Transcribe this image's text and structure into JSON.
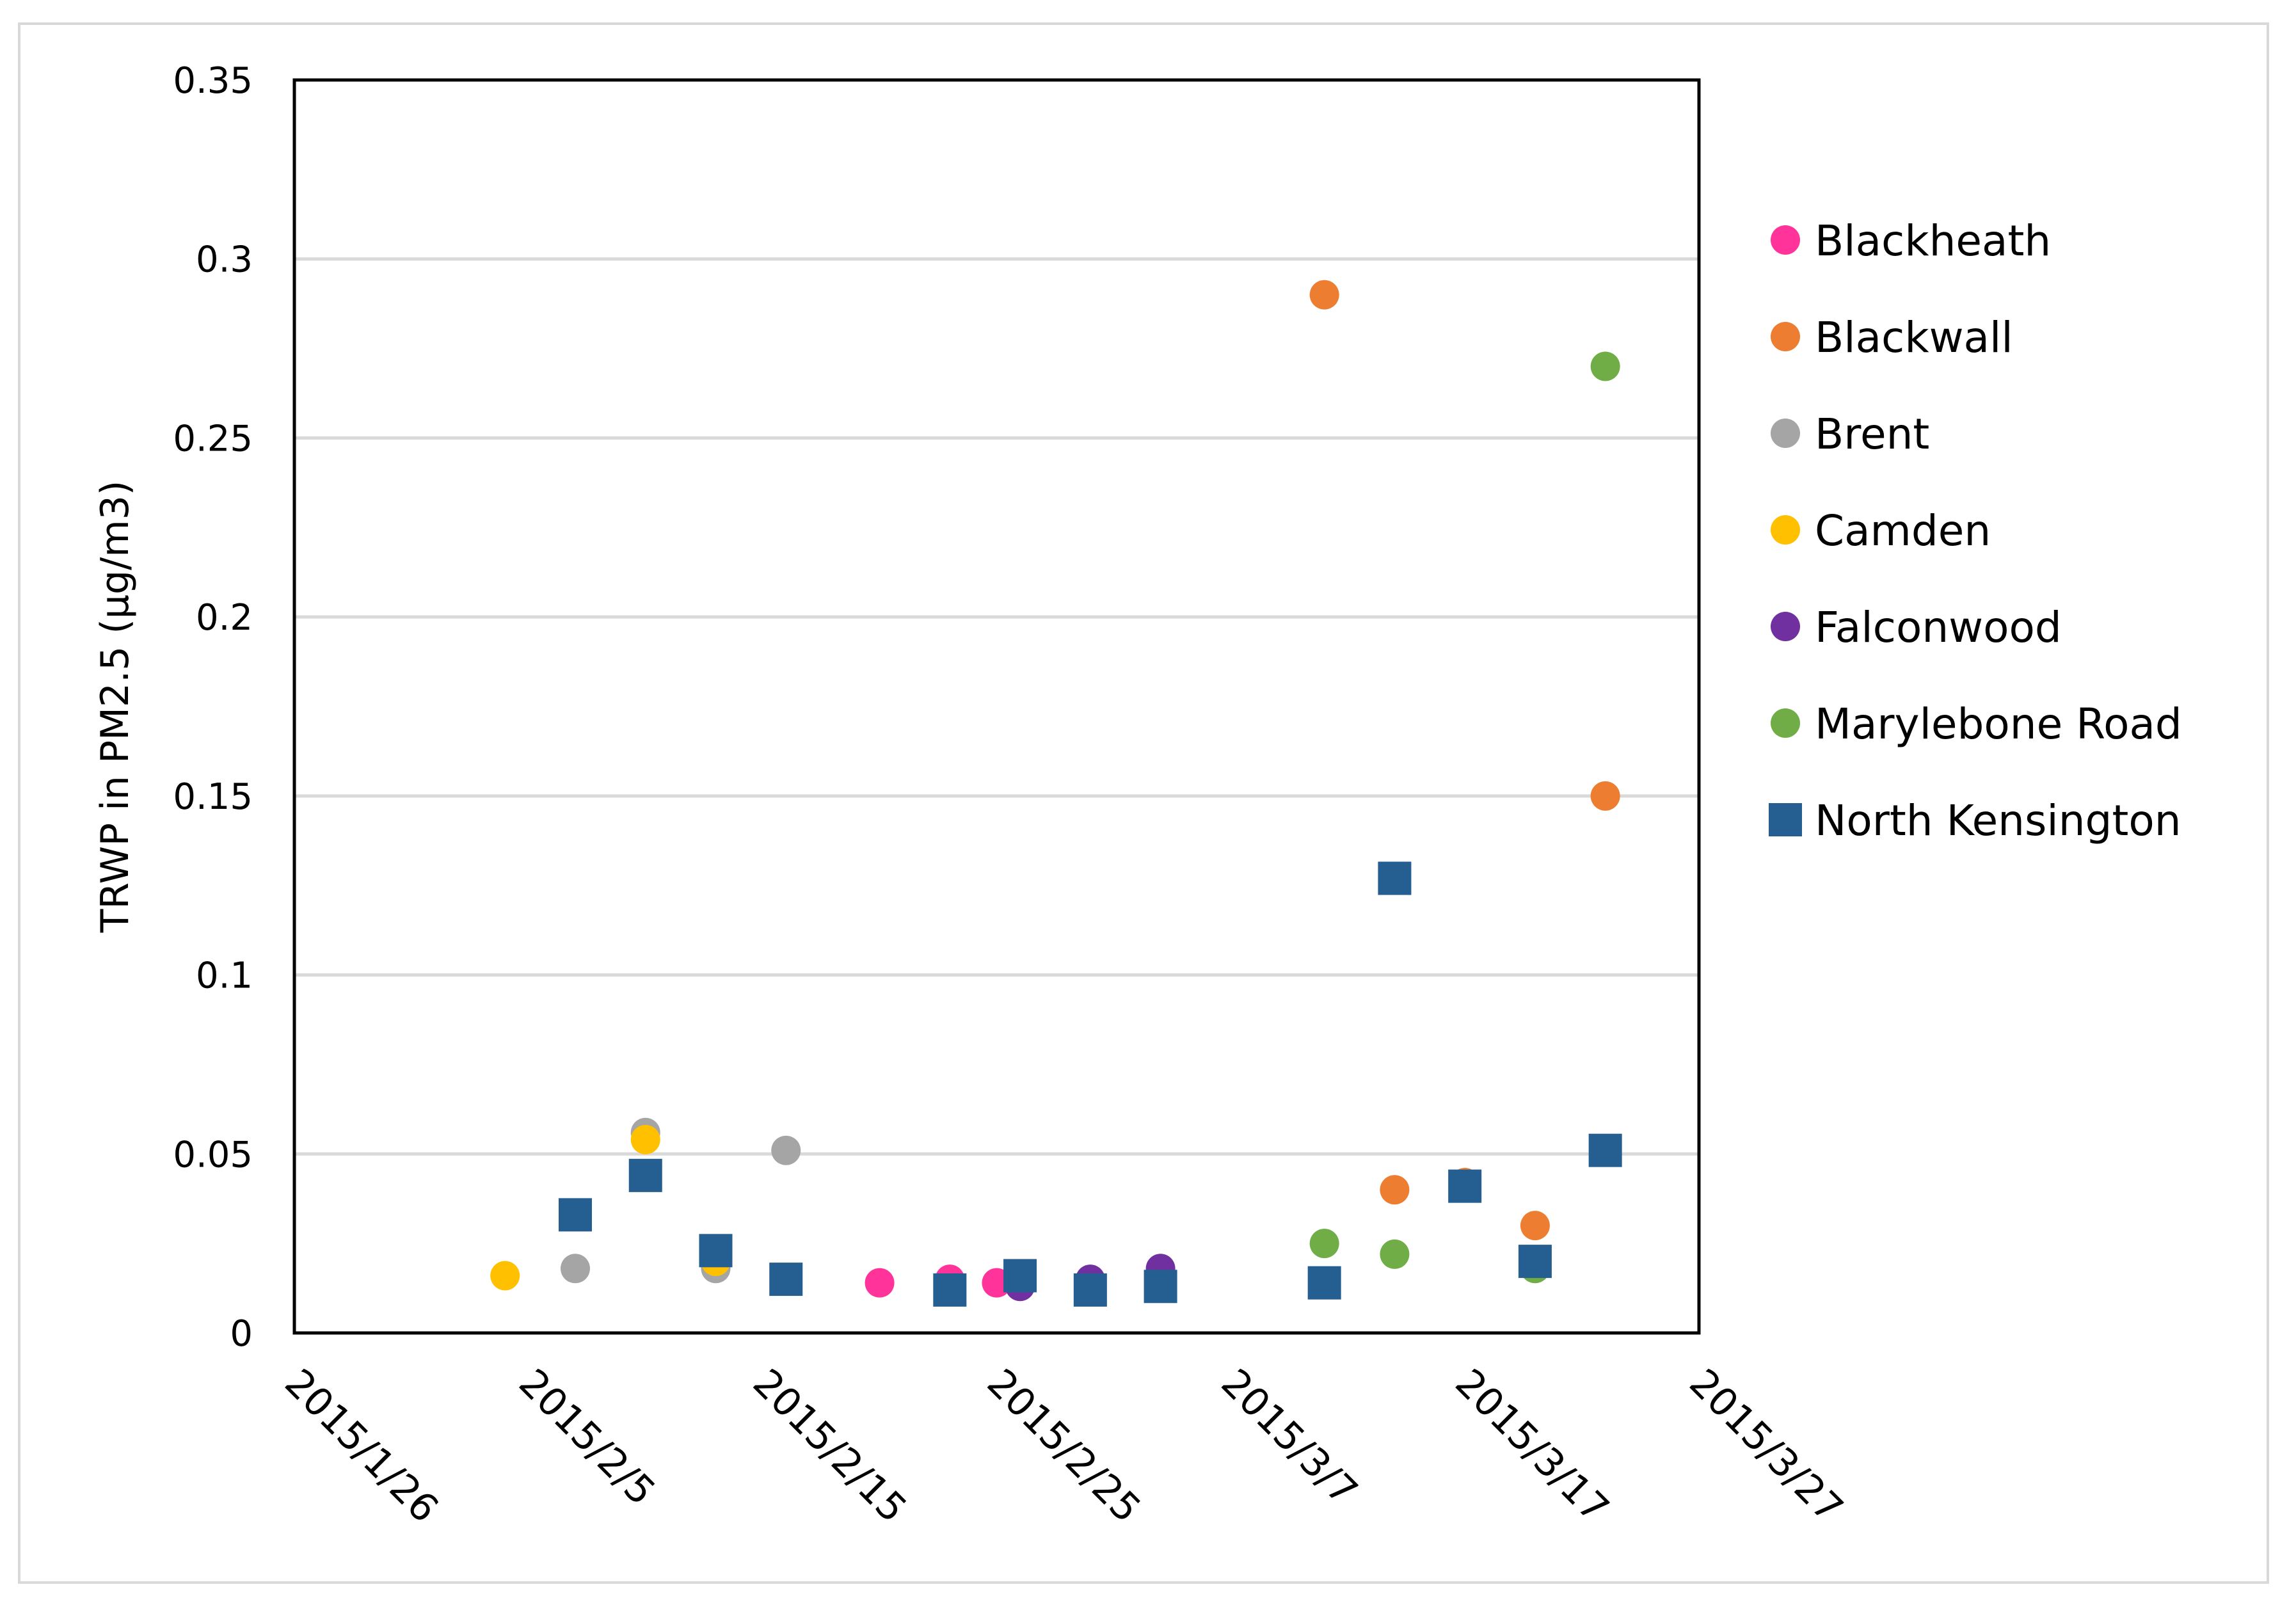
{
  "chart_data": {
    "type": "scatter",
    "title": "",
    "xlabel": "",
    "ylabel": "TRWP in PM2.5 (µg/m3)",
    "ylim": [
      0,
      0.35
    ],
    "yticks": [
      0,
      0.05,
      0.1,
      0.15,
      0.2,
      0.25,
      0.3,
      0.35
    ],
    "ytick_labels": [
      "0",
      "0.05",
      "0.1",
      "0.15",
      "0.2",
      "0.25",
      "0.3",
      "0.35"
    ],
    "xlim_days": [
      0,
      60
    ],
    "xtick_days": [
      0,
      10,
      20,
      30,
      40,
      50,
      60
    ],
    "xtick_labels": [
      "2015/1/26",
      "2015/2/5",
      "2015/2/15",
      "2015/2/25",
      "2015/3/7",
      "2015/3/17",
      "2015/3/27"
    ],
    "x_note": "x values are days since 2015/1/26",
    "grid": "horizontal",
    "legend_position": "right",
    "series": [
      {
        "name": "Blackheath",
        "color": "#FF3399",
        "marker": "circle",
        "points": [
          [
            25,
            0.014
          ],
          [
            28,
            0.015
          ],
          [
            30,
            0.014
          ]
        ]
      },
      {
        "name": "Blackwall",
        "color": "#ED7D31",
        "marker": "circle",
        "points": [
          [
            44,
            0.29
          ],
          [
            47,
            0.04
          ],
          [
            50,
            0.042
          ],
          [
            53,
            0.03
          ],
          [
            56,
            0.15
          ]
        ]
      },
      {
        "name": "Brent",
        "color": "#A5A5A5",
        "marker": "circle",
        "points": [
          [
            12,
            0.018
          ],
          [
            15,
            0.056
          ],
          [
            18,
            0.018
          ],
          [
            21,
            0.051
          ]
        ]
      },
      {
        "name": "Camden",
        "color": "#FFC000",
        "marker": "circle",
        "points": [
          [
            9,
            0.016
          ],
          [
            15,
            0.054
          ],
          [
            18,
            0.02
          ]
        ]
      },
      {
        "name": "Falconwood",
        "color": "#7030A0",
        "marker": "circle",
        "points": [
          [
            31,
            0.013
          ],
          [
            34,
            0.015
          ],
          [
            37,
            0.018
          ]
        ]
      },
      {
        "name": "Marylebone Road",
        "color": "#70AD47",
        "marker": "circle",
        "points": [
          [
            44,
            0.025
          ],
          [
            47,
            0.022
          ],
          [
            53,
            0.018
          ],
          [
            56,
            0.27
          ]
        ]
      },
      {
        "name": "North Kensington",
        "color": "#255E91",
        "marker": "square",
        "points": [
          [
            12,
            0.033
          ],
          [
            15,
            0.044
          ],
          [
            18,
            0.023
          ],
          [
            21,
            0.015
          ],
          [
            28,
            0.012
          ],
          [
            31,
            0.016
          ],
          [
            34,
            0.012
          ],
          [
            37,
            0.013
          ],
          [
            44,
            0.014
          ],
          [
            47,
            0.127
          ],
          [
            50,
            0.041
          ],
          [
            53,
            0.02
          ],
          [
            56,
            0.051
          ]
        ]
      }
    ]
  }
}
